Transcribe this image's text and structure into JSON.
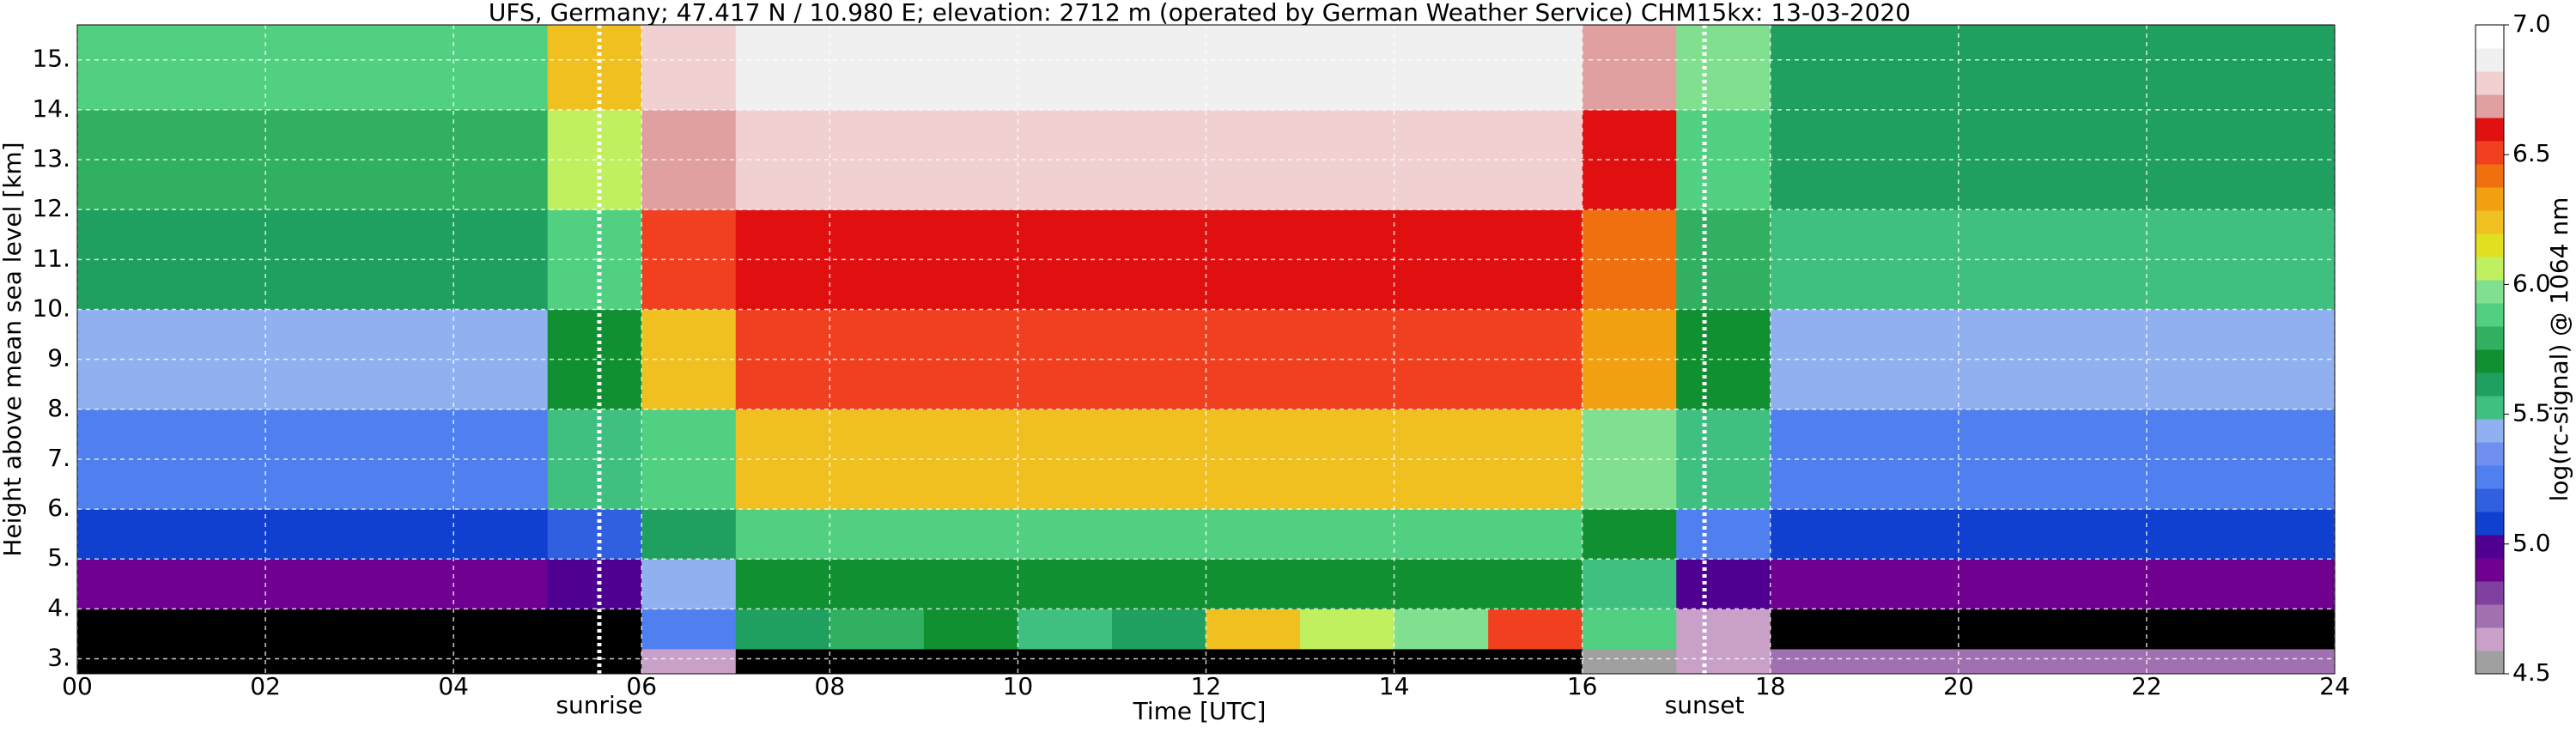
{
  "chart_data": {
    "type": "heatmap",
    "title": "UFS, Germany; 47.417 N / 10.980 E; elevation: 2712 m  (operated by German Weather Service)    CHM15kx: 13-03-2020",
    "x_label": "Time [UTC]",
    "y_label": "Height above mean sea level [km]",
    "colorbar_label": "log(rc-signal) @ 1064 nm",
    "xlim": [
      0,
      24
    ],
    "ylim": [
      2.7,
      15.7
    ],
    "xticks": [
      {
        "value": 0,
        "label": "00"
      },
      {
        "value": 2,
        "label": "02"
      },
      {
        "value": 4,
        "label": "04"
      },
      {
        "value": 6,
        "label": "06"
      },
      {
        "value": 8,
        "label": "08"
      },
      {
        "value": 10,
        "label": "10"
      },
      {
        "value": 12,
        "label": "12"
      },
      {
        "value": 14,
        "label": "14"
      },
      {
        "value": 16,
        "label": "16"
      },
      {
        "value": 18,
        "label": "18"
      },
      {
        "value": 20,
        "label": "20"
      },
      {
        "value": 22,
        "label": "22"
      },
      {
        "value": 24,
        "label": "24"
      }
    ],
    "yticks": [
      {
        "value": 3,
        "label": "3."
      },
      {
        "value": 4,
        "label": "4."
      },
      {
        "value": 5,
        "label": "5."
      },
      {
        "value": 6,
        "label": "6."
      },
      {
        "value": 7,
        "label": "7."
      },
      {
        "value": 8,
        "label": "8."
      },
      {
        "value": 9,
        "label": "9."
      },
      {
        "value": 10,
        "label": "10."
      },
      {
        "value": 11,
        "label": "11."
      },
      {
        "value": 12,
        "label": "12."
      },
      {
        "value": 13,
        "label": "13."
      },
      {
        "value": 14,
        "label": "14."
      },
      {
        "value": 15,
        "label": "15."
      }
    ],
    "grid": true,
    "x_edges": [
      0,
      1,
      2,
      3,
      4,
      5,
      6,
      7,
      8,
      9,
      10,
      11,
      12,
      13,
      14,
      15,
      16,
      17,
      18,
      19,
      20,
      21,
      22,
      23,
      24
    ],
    "y_edges": [
      2.7,
      3.2,
      4,
      5,
      6,
      8,
      10,
      12,
      14,
      15.7
    ],
    "z": [
      [
        4.4,
        4.4,
        4.4,
        4.4,
        4.4,
        4.4,
        4.6,
        4.4,
        4.4,
        4.4,
        4.4,
        4.4,
        4.4,
        4.4,
        4.4,
        4.4,
        4.5,
        4.6,
        4.7,
        4.7,
        4.7,
        4.7,
        4.7,
        4.7
      ],
      [
        4.3,
        4.3,
        4.3,
        4.3,
        4.3,
        4.4,
        5.3,
        5.6,
        5.8,
        5.7,
        5.5,
        5.6,
        6.2,
        6.1,
        6.0,
        6.5,
        5.9,
        4.6,
        4.4,
        4.4,
        4.4,
        4.4,
        4.4,
        4.4
      ],
      [
        4.9,
        4.9,
        4.9,
        4.9,
        4.9,
        4.95,
        5.4,
        5.7,
        5.7,
        5.7,
        5.7,
        5.7,
        5.7,
        5.7,
        5.7,
        5.7,
        5.5,
        5.0,
        4.9,
        4.9,
        4.9,
        4.9,
        4.9,
        4.9
      ],
      [
        5.1,
        5.1,
        5.1,
        5.1,
        5.1,
        5.2,
        5.6,
        5.9,
        5.9,
        5.9,
        5.9,
        5.9,
        5.9,
        5.9,
        5.9,
        5.9,
        5.7,
        5.3,
        5.1,
        5.1,
        5.1,
        5.1,
        5.1,
        5.1
      ],
      [
        5.3,
        5.3,
        5.3,
        5.3,
        5.3,
        5.5,
        5.9,
        6.2,
        6.2,
        6.2,
        6.2,
        6.2,
        6.2,
        6.2,
        6.2,
        6.2,
        6.0,
        5.5,
        5.3,
        5.3,
        5.3,
        5.3,
        5.3,
        5.3
      ],
      [
        5.45,
        5.45,
        5.45,
        5.45,
        5.45,
        5.7,
        6.2,
        6.5,
        6.5,
        6.5,
        6.5,
        6.5,
        6.5,
        6.5,
        6.5,
        6.5,
        6.3,
        5.7,
        5.45,
        5.45,
        5.45,
        5.45,
        5.45,
        5.45
      ],
      [
        5.6,
        5.6,
        5.6,
        5.6,
        5.6,
        5.9,
        6.5,
        6.6,
        6.6,
        6.6,
        6.6,
        6.6,
        6.6,
        6.6,
        6.6,
        6.6,
        6.4,
        5.8,
        5.55,
        5.55,
        5.55,
        5.55,
        5.55,
        5.55
      ],
      [
        5.75,
        5.75,
        5.75,
        5.75,
        5.75,
        6.1,
        6.7,
        6.8,
        6.8,
        6.8,
        6.8,
        6.8,
        6.8,
        6.8,
        6.8,
        6.8,
        6.6,
        5.9,
        5.6,
        5.6,
        5.6,
        5.6,
        5.6,
        5.6
      ],
      [
        5.85,
        5.85,
        5.85,
        5.85,
        5.85,
        6.2,
        6.8,
        6.9,
        6.9,
        6.9,
        6.9,
        6.9,
        6.9,
        6.9,
        6.9,
        6.9,
        6.7,
        5.95,
        5.6,
        5.6,
        5.6,
        5.6,
        5.6,
        5.6
      ]
    ],
    "zlim": [
      4.5,
      7.0
    ],
    "under_color": "#000000",
    "colormap": [
      "#a0a0a0",
      "#c8a0c8",
      "#a070b0",
      "#8040a0",
      "#700090",
      "#500090",
      "#1040d0",
      "#3060e0",
      "#5080f0",
      "#7090f0",
      "#90b0f0",
      "#40c080",
      "#20a060",
      "#109030",
      "#30b060",
      "#50d080",
      "#80e090",
      "#c0f060",
      "#e0e020",
      "#f0c020",
      "#f0a010",
      "#f07010",
      "#f04020",
      "#e01010",
      "#e0a0a0",
      "#f0d0d0",
      "#f0f0f0",
      "#ffffff"
    ],
    "colorbar_ticks": [
      4.5,
      {
        "value": 5.0,
        "label": "5.0"
      },
      5.5,
      {
        "value": 6.0,
        "label": "6.0"
      },
      6.5,
      {
        "value": 7.0,
        "label": "7.0"
      }
    ],
    "annotations": [
      {
        "text": "sunrise",
        "x": 5.55
      },
      {
        "text": "sunset",
        "x": 17.3
      }
    ]
  }
}
